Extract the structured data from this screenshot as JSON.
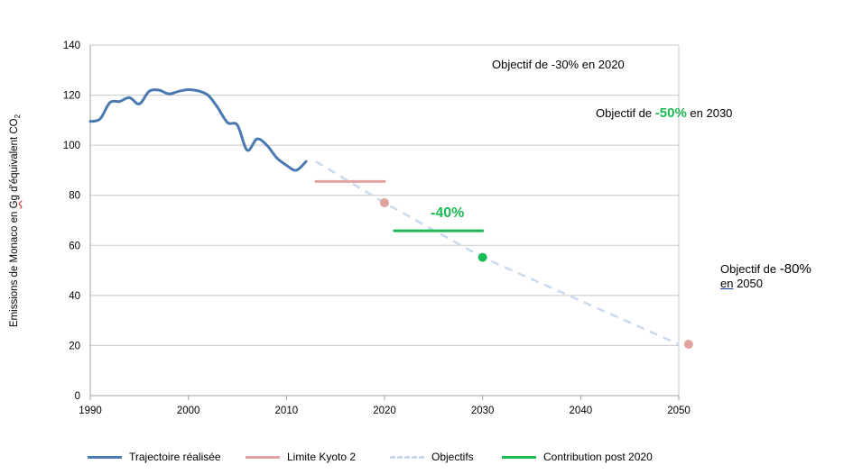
{
  "chart_data": {
    "type": "line",
    "xlim": [
      1990,
      2050
    ],
    "ylim": [
      0,
      140
    ],
    "xticks": [
      1990,
      2000,
      2010,
      2020,
      2030,
      2040,
      2050
    ],
    "yticks": [
      0,
      20,
      40,
      60,
      80,
      100,
      120,
      140
    ],
    "ylabel_parts": [
      "Emissions de Monaco en ",
      "Gg",
      " d'équivalent CO",
      "2"
    ],
    "grid": "horizontal",
    "legend_position": "bottom",
    "series": [
      {
        "name": "Trajectoire réalisée",
        "color": "#4a79b0",
        "style": "solid",
        "points": [
          [
            1990,
            109.5
          ],
          [
            1991,
            110.5
          ],
          [
            1992,
            117
          ],
          [
            1993,
            117.5
          ],
          [
            1994,
            119
          ],
          [
            1995,
            116.5
          ],
          [
            1996,
            121.5
          ],
          [
            1997,
            122
          ],
          [
            1998,
            120.5
          ],
          [
            1999,
            121.5
          ],
          [
            2000,
            122.2
          ],
          [
            2001,
            121.7
          ],
          [
            2002,
            120
          ],
          [
            2003,
            115
          ],
          [
            2004,
            109
          ],
          [
            2005,
            108
          ],
          [
            2006,
            98
          ],
          [
            2007,
            102.5
          ],
          [
            2008,
            100
          ],
          [
            2009,
            95
          ],
          [
            2010,
            92
          ],
          [
            2011,
            90
          ],
          [
            2012,
            93.5
          ]
        ]
      },
      {
        "name": "Limite Kyoto 2",
        "color": "#e0a3a0",
        "style": "solid",
        "points": [
          [
            2013,
            85.5
          ],
          [
            2020,
            85.5
          ]
        ]
      },
      {
        "name": "Objectifs",
        "color": "#c9d9ee",
        "style": "dashed",
        "points": [
          [
            2013,
            93.5
          ],
          [
            2020,
            77
          ],
          [
            2030,
            55.2
          ],
          [
            2050,
            20.5
          ]
        ]
      },
      {
        "name": "Contribution post 2020",
        "color": "#1db954",
        "style": "solid",
        "points": [
          [
            2021,
            65.8
          ],
          [
            2030,
            65.8
          ]
        ]
      }
    ],
    "markers": [
      {
        "x": 2020,
        "y": 77,
        "color": "#e0a3a0"
      },
      {
        "x": 2030,
        "y": 55.2,
        "color": "#1db954"
      },
      {
        "x": 2051,
        "y": 20.5,
        "color": "#e0a3a0"
      }
    ],
    "annotations": {
      "obj2020": "Objectif de -30% en 2020",
      "obj2030_pre": "Objectif de ",
      "obj2030_pct": "-50%",
      "obj2030_post": " en 2030",
      "obj2050_pre": "Objectif de ",
      "obj2050_pct": "-80%",
      "obj2050_en": "en",
      "obj2050_post": " 2050",
      "pct40": "-40%"
    }
  }
}
